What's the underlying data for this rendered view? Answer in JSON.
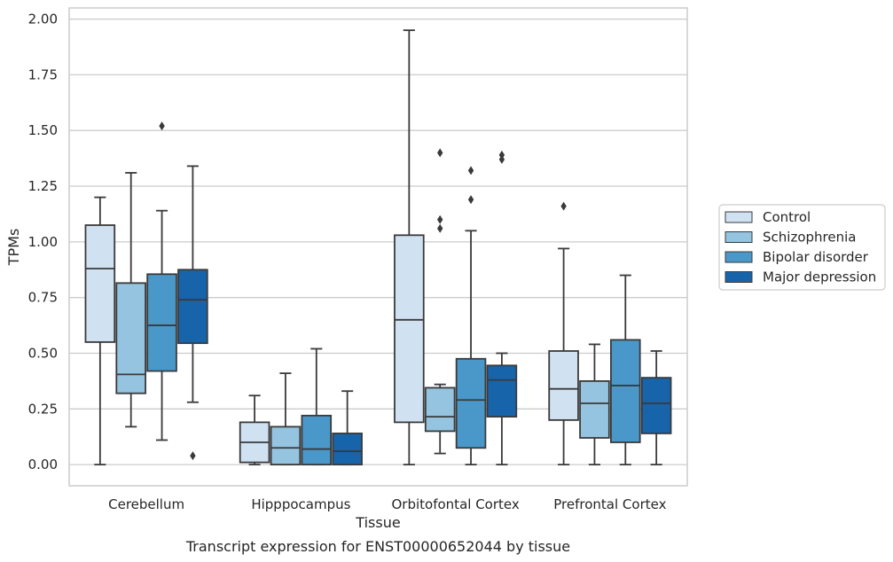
{
  "caption": "Transcript expression for ENST00000652044 by tissue",
  "chart_data": {
    "type": "box",
    "xlabel": "Tissue",
    "ylabel": "TPMs",
    "ylim": [
      -0.095,
      2.05
    ],
    "yticks": [
      "0.00",
      "0.25",
      "0.50",
      "0.75",
      "1.00",
      "1.25",
      "1.50",
      "1.75",
      "2.00"
    ],
    "categories": [
      "Cerebellum",
      "Hipppocampus",
      "Orbitofontal Cortex",
      "Prefrontal Cortex"
    ],
    "grid": "horizontal",
    "legend_position": "right",
    "series": [
      {
        "name": "Control",
        "color": "#d0e1f2",
        "boxes": [
          {
            "min": 0.0,
            "q1": 0.55,
            "median": 0.88,
            "q3": 1.075,
            "max": 1.2,
            "outliers": []
          },
          {
            "min": 0.0,
            "q1": 0.01,
            "median": 0.1,
            "q3": 0.19,
            "max": 0.31,
            "outliers": []
          },
          {
            "min": 0.0,
            "q1": 0.19,
            "median": 0.65,
            "q3": 1.03,
            "max": 1.95,
            "outliers": []
          },
          {
            "min": 0.0,
            "q1": 0.2,
            "median": 0.34,
            "q3": 0.51,
            "max": 0.97,
            "outliers": [
              1.16
            ]
          }
        ]
      },
      {
        "name": "Schizophrenia",
        "color": "#94c4df",
        "boxes": [
          {
            "min": 0.17,
            "q1": 0.32,
            "median": 0.405,
            "q3": 0.815,
            "max": 1.31,
            "outliers": []
          },
          {
            "min": 0.0,
            "q1": 0.0,
            "median": 0.075,
            "q3": 0.17,
            "max": 0.41,
            "outliers": []
          },
          {
            "min": 0.05,
            "q1": 0.15,
            "median": 0.215,
            "q3": 0.345,
            "max": 0.36,
            "outliers": [
              1.4,
              1.1,
              1.06
            ]
          },
          {
            "min": 0.0,
            "q1": 0.12,
            "median": 0.275,
            "q3": 0.375,
            "max": 0.54,
            "outliers": []
          }
        ]
      },
      {
        "name": "Bipolar disorder",
        "color": "#4a98c9",
        "boxes": [
          {
            "min": 0.11,
            "q1": 0.42,
            "median": 0.625,
            "q3": 0.855,
            "max": 1.14,
            "outliers": [
              1.52
            ]
          },
          {
            "min": 0.0,
            "q1": 0.0,
            "median": 0.07,
            "q3": 0.22,
            "max": 0.52,
            "outliers": []
          },
          {
            "min": 0.0,
            "q1": 0.075,
            "median": 0.29,
            "q3": 0.475,
            "max": 1.05,
            "outliers": [
              1.32,
              1.19
            ]
          },
          {
            "min": 0.0,
            "q1": 0.1,
            "median": 0.355,
            "q3": 0.56,
            "max": 0.85,
            "outliers": []
          }
        ]
      },
      {
        "name": "Major depression",
        "color": "#1764ab",
        "boxes": [
          {
            "min": 0.28,
            "q1": 0.545,
            "median": 0.74,
            "q3": 0.875,
            "max": 1.34,
            "outliers": [
              0.04
            ]
          },
          {
            "min": 0.0,
            "q1": 0.0,
            "median": 0.06,
            "q3": 0.14,
            "max": 0.33,
            "outliers": []
          },
          {
            "min": 0.0,
            "q1": 0.215,
            "median": 0.38,
            "q3": 0.445,
            "max": 0.5,
            "outliers": [
              1.39,
              1.37
            ]
          },
          {
            "min": 0.0,
            "q1": 0.14,
            "median": 0.275,
            "q3": 0.39,
            "max": 0.51,
            "outliers": []
          }
        ]
      }
    ]
  }
}
